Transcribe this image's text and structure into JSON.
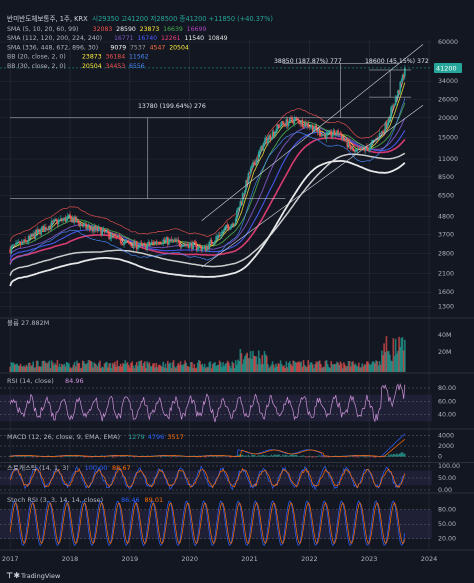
{
  "header": {
    "symbol": "반미반도체보통주, 1주, KRX",
    "ohlc": "시29350  고41200  저28500  종41200  +11850 (+40.37%)",
    "legends": [
      {
        "label": "SMA (5, 10, 20, 60, 99)",
        "values": [
          {
            "v": "32083",
            "c": "#ef5350"
          },
          {
            "v": "28590",
            "c": "#f5f5f5"
          },
          {
            "v": "23873",
            "c": "#ffeb3b"
          },
          {
            "v": "16639",
            "c": "#4caf50"
          },
          {
            "v": "16699",
            "c": "#ab47bc"
          }
        ]
      },
      {
        "label": "SMA (112, 120, 200, 224, 240)",
        "values": [
          {
            "v": "16771",
            "c": "#7e57c2"
          },
          {
            "v": "16740",
            "c": "#4a5dff"
          },
          {
            "v": "12261",
            "c": "#ec407a"
          },
          {
            "v": "11540",
            "c": "#f0f0f0"
          },
          {
            "v": "10849",
            "c": "#e0e0e0"
          }
        ]
      },
      {
        "label": "SMA (336, 448, 672, 896, 30)",
        "values": [
          {
            "v": "9079",
            "c": "#ffffff"
          },
          {
            "v": "7537",
            "c": "#9e9e9e"
          },
          {
            "v": "4547",
            "c": "#ff7043"
          },
          {
            "v": "20504",
            "c": "#ffeb3b"
          }
        ]
      },
      {
        "label": "BB (20, close, 2, 0)",
        "values": [
          {
            "v": "23873",
            "c": "#ffeb3b"
          },
          {
            "v": "36184",
            "c": "#ef5350"
          },
          {
            "v": "11562",
            "c": "#4a8cff"
          }
        ]
      },
      {
        "label": "BB (30, close, 2, 0)",
        "values": [
          {
            "v": "20504",
            "c": "#ffeb3b"
          },
          {
            "v": "34453",
            "c": "#ef5350"
          },
          {
            "v": "6556",
            "c": "#4a8cff"
          }
        ]
      }
    ]
  },
  "colors": {
    "background": "#131722",
    "grid": "#2a2e39",
    "up": "#26a69a",
    "down": "#ef5350",
    "text": "#b2b5be",
    "last_price_bg": "#26a69a"
  },
  "chart_data": [
    {
      "type": "line",
      "panel": "price",
      "scale": "log",
      "ylim": [
        1200,
        60000
      ],
      "x_ticks": [
        "2017",
        "2018",
        "2019",
        "2020",
        "2021",
        "2022",
        "2023",
        "2024"
      ],
      "y_ticks": [
        "60000",
        "41200",
        "34000",
        "26000",
        "20000",
        "15000",
        "11000",
        "8500",
        "6500",
        "4800",
        "3700",
        "2800",
        "2100",
        "1600",
        "1300"
      ],
      "last_price": "41200",
      "annotations": [
        {
          "text": "13780 (199.64%) 276"
        },
        {
          "text": "38850 (187.87%) 777"
        },
        {
          "text": "18600 (45.15%) 372"
        }
      ],
      "x": [
        2017.0,
        2017.25,
        2017.5,
        2017.75,
        2018.0,
        2018.25,
        2018.5,
        2018.75,
        2019.0,
        2019.25,
        2019.5,
        2019.75,
        2020.0,
        2020.25,
        2020.5,
        2020.75,
        2021.0,
        2021.25,
        2021.5,
        2021.75,
        2022.0,
        2022.25,
        2022.5,
        2022.75,
        2023.0,
        2023.25,
        2023.5,
        2023.6
      ],
      "close": [
        3000,
        3300,
        3900,
        4400,
        4700,
        4100,
        3900,
        3500,
        3200,
        3100,
        3400,
        3300,
        3200,
        3000,
        3700,
        4500,
        9000,
        14000,
        18000,
        19500,
        18000,
        15500,
        16000,
        12000,
        13000,
        17000,
        30000,
        41200
      ]
    },
    {
      "type": "bar",
      "panel": "volume",
      "label": "볼륨  27.882M",
      "y_ticks": [
        "40M",
        "20M"
      ]
    },
    {
      "type": "line",
      "panel": "rsi",
      "label": "RSI (14, close)",
      "value": "84.96",
      "y_ticks": [
        "80.00",
        "60.00",
        "40.00"
      ],
      "ylim": [
        20,
        95
      ]
    },
    {
      "type": "line",
      "panel": "macd",
      "label": "MACD (12, 26, close, 9, EMA, EMA)",
      "values": [
        {
          "v": "1279",
          "c": "#26a69a"
        },
        {
          "v": "4796",
          "c": "#2962ff"
        },
        {
          "v": "3517",
          "c": "#ff6d00"
        }
      ],
      "y_ticks": [
        "4000",
        "2000",
        "0"
      ]
    },
    {
      "type": "line",
      "panel": "stoch",
      "label": "스토캐스틱 (14, 1, 3)",
      "values": [
        {
          "v": "100.00",
          "c": "#2962ff"
        },
        {
          "v": "88.67",
          "c": "#ff6d00"
        }
      ],
      "y_ticks": [
        "100.00",
        "50.00",
        "0.00"
      ]
    },
    {
      "type": "line",
      "panel": "stochrsi",
      "label": "Stoch RSI (3, 3, 14, 14, close)",
      "values": [
        {
          "v": "86.46",
          "c": "#2962ff"
        },
        {
          "v": "89.01",
          "c": "#ff6d00"
        }
      ],
      "y_ticks": [
        "80.00",
        "50.00",
        "20.00"
      ]
    }
  ],
  "footer": {
    "brand": "TradingView",
    "logo": "tv-logo-icon"
  }
}
